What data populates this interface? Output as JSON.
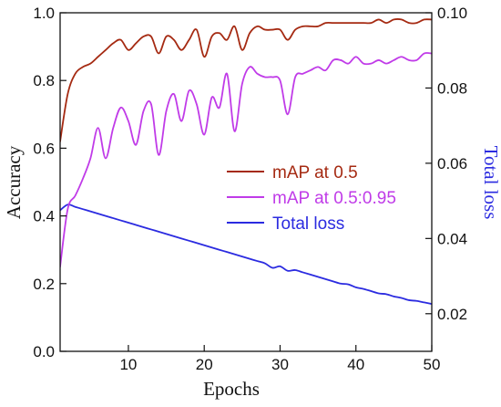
{
  "chart_data": {
    "type": "line",
    "xlabel": "Epochs",
    "ylabel_left": "Accuracy",
    "ylabel_right": "Total loss",
    "xlim": [
      1,
      50
    ],
    "ylim_left": [
      0,
      1.0
    ],
    "ylim_right": [
      0.01,
      0.1
    ],
    "x_ticks": [
      10,
      20,
      30,
      40,
      50
    ],
    "y_left_ticks": [
      0.0,
      0.2,
      0.4,
      0.6,
      0.8,
      1.0
    ],
    "y_left_tick_labels": [
      "0.0",
      "0.2",
      "0.4",
      "0.6",
      "0.8",
      "1.0"
    ],
    "y_right_ticks": [
      0.02,
      0.04,
      0.06,
      0.08,
      0.1
    ],
    "y_right_tick_labels": [
      "0.02",
      "0.04",
      "0.06",
      "0.08",
      "0.10"
    ],
    "grid": false,
    "legend_position": "center-right",
    "series": [
      {
        "name": "mAP at 0.5",
        "axis": "left",
        "color": "#a52a12",
        "x": [
          1,
          2,
          3,
          4,
          5,
          6,
          7,
          8,
          9,
          10,
          11,
          12,
          13,
          14,
          15,
          16,
          17,
          18,
          19,
          20,
          21,
          22,
          23,
          24,
          25,
          26,
          27,
          28,
          29,
          30,
          31,
          32,
          33,
          34,
          35,
          36,
          37,
          38,
          39,
          40,
          41,
          42,
          43,
          44,
          45,
          46,
          47,
          48,
          49,
          50
        ],
        "y": [
          0.62,
          0.76,
          0.82,
          0.84,
          0.85,
          0.87,
          0.89,
          0.91,
          0.92,
          0.89,
          0.91,
          0.93,
          0.93,
          0.88,
          0.93,
          0.92,
          0.89,
          0.92,
          0.95,
          0.87,
          0.93,
          0.94,
          0.92,
          0.96,
          0.89,
          0.94,
          0.96,
          0.95,
          0.95,
          0.95,
          0.92,
          0.95,
          0.96,
          0.96,
          0.96,
          0.97,
          0.97,
          0.97,
          0.97,
          0.97,
          0.97,
          0.97,
          0.98,
          0.97,
          0.98,
          0.98,
          0.97,
          0.97,
          0.98,
          0.98
        ]
      },
      {
        "name": "mAP at 0.5:0.95",
        "axis": "left",
        "color": "#c03be8",
        "x": [
          1,
          2,
          3,
          4,
          5,
          6,
          7,
          8,
          9,
          10,
          11,
          12,
          13,
          14,
          15,
          16,
          17,
          18,
          19,
          20,
          21,
          22,
          23,
          24,
          25,
          26,
          27,
          28,
          29,
          30,
          31,
          32,
          33,
          34,
          35,
          36,
          37,
          38,
          39,
          40,
          41,
          42,
          43,
          44,
          45,
          46,
          47,
          48,
          49,
          50
        ],
        "y": [
          0.25,
          0.42,
          0.46,
          0.51,
          0.57,
          0.66,
          0.57,
          0.66,
          0.72,
          0.68,
          0.61,
          0.71,
          0.73,
          0.58,
          0.71,
          0.76,
          0.68,
          0.77,
          0.73,
          0.64,
          0.75,
          0.72,
          0.82,
          0.65,
          0.79,
          0.84,
          0.82,
          0.81,
          0.81,
          0.8,
          0.7,
          0.81,
          0.82,
          0.83,
          0.84,
          0.83,
          0.86,
          0.86,
          0.85,
          0.87,
          0.85,
          0.85,
          0.86,
          0.85,
          0.86,
          0.87,
          0.86,
          0.86,
          0.88,
          0.88
        ]
      },
      {
        "name": "Total loss",
        "axis": "right",
        "color": "#2b2be0",
        "x": [
          1,
          2,
          3,
          4,
          5,
          6,
          7,
          8,
          9,
          10,
          11,
          12,
          13,
          14,
          15,
          16,
          17,
          18,
          19,
          20,
          21,
          22,
          23,
          24,
          25,
          26,
          27,
          28,
          29,
          30,
          31,
          32,
          33,
          34,
          35,
          36,
          37,
          38,
          39,
          40,
          41,
          42,
          43,
          44,
          45,
          46,
          47,
          48,
          49,
          50
        ],
        "y": [
          0.0475,
          0.049,
          0.0484,
          0.0478,
          0.0472,
          0.0466,
          0.046,
          0.0454,
          0.0448,
          0.0442,
          0.0436,
          0.043,
          0.0424,
          0.0418,
          0.0412,
          0.0406,
          0.04,
          0.0394,
          0.0388,
          0.0382,
          0.0376,
          0.037,
          0.0364,
          0.0358,
          0.0352,
          0.0346,
          0.034,
          0.0334,
          0.0322,
          0.0326,
          0.0314,
          0.0316,
          0.031,
          0.0304,
          0.0298,
          0.0292,
          0.0286,
          0.028,
          0.0278,
          0.027,
          0.0266,
          0.026,
          0.0254,
          0.0252,
          0.0246,
          0.0242,
          0.0236,
          0.0234,
          0.023,
          0.0226
        ]
      }
    ]
  }
}
